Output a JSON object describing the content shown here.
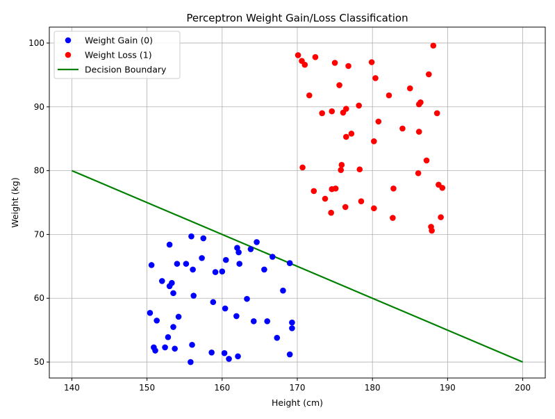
{
  "chart_data": {
    "type": "scatter",
    "title": "Perceptron Weight Gain/Loss Classification",
    "xlabel": "Height (cm)",
    "ylabel": "Weight (kg)",
    "xlim": [
      137,
      203
    ],
    "ylim": [
      47.5,
      102.5
    ],
    "xticks": [
      140,
      150,
      160,
      170,
      180,
      190,
      200
    ],
    "yticks": [
      50,
      60,
      70,
      80,
      90,
      100
    ],
    "grid": true,
    "legend_position": "top-left",
    "series": [
      {
        "name": "Weight Gain (0)",
        "color": "#0000ff",
        "marker": "circle",
        "points": [
          [
            150.6,
            65.2
          ],
          [
            150.4,
            57.7
          ],
          [
            151.3,
            56.5
          ],
          [
            152.0,
            62.7
          ],
          [
            153.0,
            68.4
          ],
          [
            153.3,
            62.4
          ],
          [
            153.0,
            61.9
          ],
          [
            153.5,
            60.8
          ],
          [
            154.0,
            65.4
          ],
          [
            155.2,
            65.4
          ],
          [
            155.9,
            69.7
          ],
          [
            156.1,
            64.5
          ],
          [
            156.2,
            60.4
          ],
          [
            157.3,
            66.3
          ],
          [
            157.5,
            69.4
          ],
          [
            153.5,
            55.5
          ],
          [
            154.2,
            57.1
          ],
          [
            152.8,
            53.9
          ],
          [
            152.4,
            52.3
          ],
          [
            153.7,
            52.1
          ],
          [
            150.9,
            52.3
          ],
          [
            151.1,
            51.8
          ],
          [
            156.0,
            52.7
          ],
          [
            155.8,
            50.0
          ],
          [
            158.8,
            59.4
          ],
          [
            159.1,
            64.1
          ],
          [
            160.0,
            64.2
          ],
          [
            160.5,
            66.0
          ],
          [
            160.4,
            58.4
          ],
          [
            158.6,
            51.5
          ],
          [
            160.3,
            51.4
          ],
          [
            160.9,
            50.5
          ],
          [
            162.1,
            50.9
          ],
          [
            161.9,
            57.2
          ],
          [
            162.0,
            67.9
          ],
          [
            162.2,
            67.2
          ],
          [
            162.3,
            65.4
          ],
          [
            163.3,
            59.9
          ],
          [
            163.8,
            67.7
          ],
          [
            164.6,
            68.8
          ],
          [
            164.2,
            56.4
          ],
          [
            165.6,
            64.5
          ],
          [
            166.0,
            56.4
          ],
          [
            166.7,
            66.5
          ],
          [
            167.3,
            53.8
          ],
          [
            168.1,
            61.2
          ],
          [
            169.0,
            65.5
          ],
          [
            169.3,
            56.2
          ],
          [
            169.3,
            55.3
          ],
          [
            169.0,
            51.2
          ]
        ]
      },
      {
        "name": "Weight Loss (1)",
        "color": "#ff0000",
        "marker": "circle",
        "points": [
          [
            170.1,
            98.1
          ],
          [
            170.6,
            97.2
          ],
          [
            171.0,
            96.6
          ],
          [
            172.4,
            97.8
          ],
          [
            171.6,
            91.8
          ],
          [
            173.3,
            89.0
          ],
          [
            174.6,
            89.3
          ],
          [
            175.0,
            96.9
          ],
          [
            175.6,
            93.4
          ],
          [
            176.1,
            89.1
          ],
          [
            176.5,
            89.7
          ],
          [
            176.8,
            96.4
          ],
          [
            178.2,
            90.2
          ],
          [
            176.5,
            85.3
          ],
          [
            177.2,
            85.8
          ],
          [
            179.9,
            97.0
          ],
          [
            180.4,
            94.5
          ],
          [
            180.2,
            84.6
          ],
          [
            180.8,
            87.7
          ],
          [
            182.2,
            91.8
          ],
          [
            170.7,
            80.5
          ],
          [
            172.2,
            76.8
          ],
          [
            173.7,
            75.6
          ],
          [
            174.6,
            77.1
          ],
          [
            175.1,
            77.2
          ],
          [
            175.8,
            80.1
          ],
          [
            175.9,
            80.9
          ],
          [
            176.4,
            74.3
          ],
          [
            174.5,
            73.4
          ],
          [
            178.3,
            80.2
          ],
          [
            178.5,
            75.2
          ],
          [
            180.2,
            74.1
          ],
          [
            182.7,
            72.6
          ],
          [
            182.8,
            77.2
          ],
          [
            184.0,
            86.6
          ],
          [
            185.0,
            92.9
          ],
          [
            186.2,
            90.4
          ],
          [
            186.4,
            90.7
          ],
          [
            186.2,
            86.1
          ],
          [
            186.1,
            79.6
          ],
          [
            187.2,
            81.6
          ],
          [
            187.5,
            95.1
          ],
          [
            188.1,
            99.6
          ],
          [
            188.6,
            89.0
          ],
          [
            188.8,
            77.8
          ],
          [
            189.3,
            77.3
          ],
          [
            189.1,
            72.7
          ],
          [
            187.8,
            71.2
          ],
          [
            187.9,
            70.6
          ]
        ]
      },
      {
        "name": "Decision Boundary",
        "color": "#008000",
        "marker": "line",
        "points": [
          [
            140,
            80
          ],
          [
            200,
            50
          ]
        ]
      }
    ]
  }
}
